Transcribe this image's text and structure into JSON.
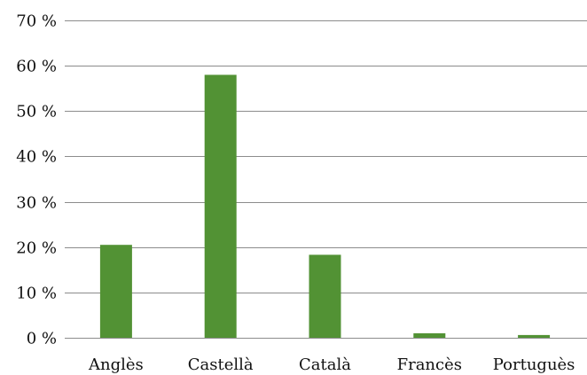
{
  "chart_data": {
    "type": "bar",
    "title": "",
    "xlabel": "",
    "ylabel": "",
    "categories": [
      "Anglès",
      "Castellà",
      "Català",
      "Francès",
      "Portuguès"
    ],
    "values": [
      20.5,
      58,
      18.3,
      1.0,
      0.6
    ],
    "ylim": [
      0,
      70
    ],
    "y_ticks": [
      0,
      10,
      20,
      30,
      40,
      50,
      60,
      70
    ],
    "y_tick_labels": [
      "0 %",
      "10 %",
      "20 %",
      "30 %",
      "40 %",
      "50 %",
      "60 %",
      "70 %"
    ],
    "grid": true,
    "legend": "none",
    "colors": {
      "bar": "#529234",
      "grid": "#8c8c8c",
      "text": "#111111"
    }
  }
}
